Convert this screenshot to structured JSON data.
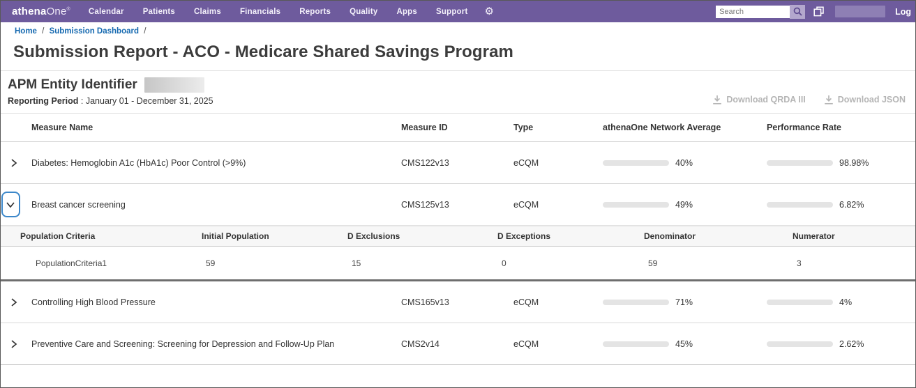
{
  "colors": {
    "nav_purple": "#6e5b9d",
    "bar_blue": "#1c6fb8",
    "link_blue": "#1569b0",
    "disabled_gray": "#b5b5b5"
  },
  "navbar": {
    "brand_bold": "athena",
    "brand_light": "One",
    "brand_reg": "®",
    "items": [
      "Calendar",
      "Patients",
      "Claims",
      "Financials",
      "Reports",
      "Quality",
      "Apps",
      "Support"
    ],
    "search_placeholder": "Search",
    "logout_label": "Log"
  },
  "breadcrumb": {
    "home": "Home",
    "dashboard": "Submission Dashboard",
    "separator": "/"
  },
  "page": {
    "title": "Submission Report - ACO - Medicare Shared Savings Program"
  },
  "report": {
    "apm_label": "APM Entity Identifier",
    "period_label": "Reporting Period",
    "period_value": ": January 01 - December 31, 2025",
    "download_qrda": "Download QRDA III",
    "download_json": "Download JSON"
  },
  "table": {
    "headers": {
      "name": "Measure Name",
      "id": "Measure ID",
      "type": "Type",
      "network_average": "athenaOne Network Average",
      "performance_rate": "Performance Rate"
    },
    "rows": [
      {
        "name": "Diabetes: Hemoglobin A1c (HbA1c) Poor Control (>9%)",
        "id": "CMS122v13",
        "type": "eCQM",
        "network_average_label": "40%",
        "network_average_pct": 40,
        "performance_rate_label": "98.98%",
        "performance_rate_pct": 98.98,
        "expanded": false
      },
      {
        "name": "Breast cancer screening",
        "id": "CMS125v13",
        "type": "eCQM",
        "network_average_label": "49%",
        "network_average_pct": 49,
        "performance_rate_label": "6.82%",
        "performance_rate_pct": 6.82,
        "expanded": true
      },
      {
        "name": "Controlling High Blood Pressure",
        "id": "CMS165v13",
        "type": "eCQM",
        "network_average_label": "71%",
        "network_average_pct": 71,
        "performance_rate_label": "4%",
        "performance_rate_pct": 4,
        "expanded": false
      },
      {
        "name": "Preventive Care and Screening: Screening for Depression and Follow-Up Plan",
        "id": "CMS2v14",
        "type": "eCQM",
        "network_average_label": "45%",
        "network_average_pct": 45,
        "performance_rate_label": "2.62%",
        "performance_rate_pct": 2.62,
        "expanded": false
      }
    ]
  },
  "detail_table": {
    "headers": {
      "criteria": "Population Criteria",
      "initial_population": "Initial Population",
      "d_exclusions": "D Exclusions",
      "d_exceptions": "D Exceptions",
      "denominator": "Denominator",
      "numerator": "Numerator"
    },
    "rows": [
      {
        "criteria": "PopulationCriteria1",
        "initial_population": "59",
        "d_exclusions": "15",
        "d_exceptions": "0",
        "denominator": "59",
        "numerator": "3"
      }
    ]
  }
}
